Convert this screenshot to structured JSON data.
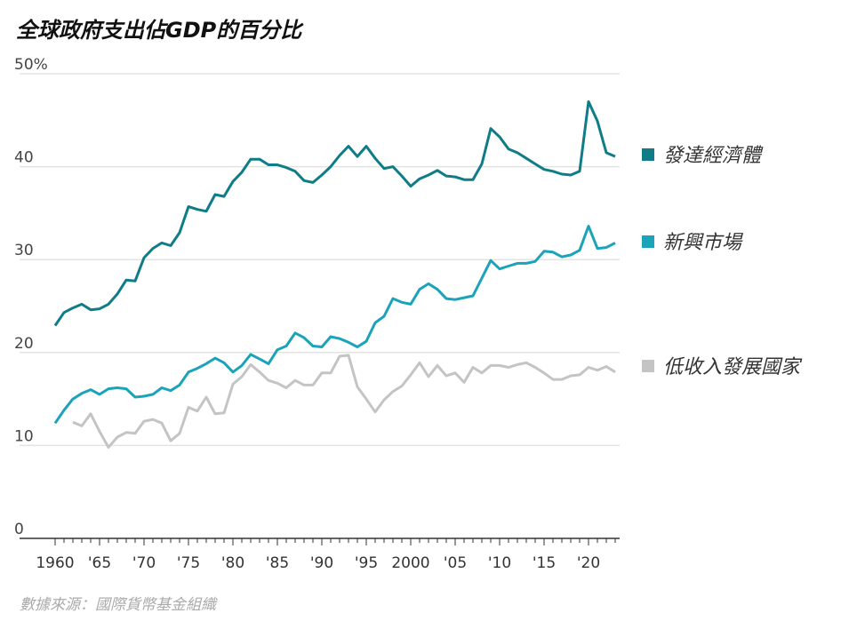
{
  "chart_data": {
    "type": "line",
    "title": "全球政府支出佔GDP的百分比",
    "source": "數據來源：國際貨幣基金組織",
    "ylim": [
      0,
      50
    ],
    "yticks": [
      0,
      10,
      20,
      30,
      40,
      50
    ],
    "ytick_labels": [
      "0",
      "10",
      "20",
      "30",
      "40",
      "50%"
    ],
    "xlim": [
      1960,
      2023
    ],
    "xticks": [
      1960,
      1965,
      1970,
      1975,
      1980,
      1985,
      1990,
      1995,
      2000,
      2005,
      2010,
      2015,
      2020
    ],
    "xtick_labels": [
      "1960",
      "'65",
      "'70",
      "'75",
      "'80",
      "'85",
      "'90",
      "'95",
      "2000",
      "'05",
      "'10",
      "'15",
      "'20"
    ],
    "grid": true,
    "legend": "right",
    "series": [
      {
        "name": "發達經濟體",
        "color": "#0f7c87",
        "start": 1960,
        "values": [
          22.9,
          24.3,
          24.8,
          25.2,
          24.6,
          24.7,
          25.2,
          26.3,
          27.8,
          27.7,
          30.2,
          31.2,
          31.8,
          31.5,
          32.9,
          35.7,
          35.4,
          35.2,
          37.0,
          36.8,
          38.4,
          39.4,
          40.8,
          40.8,
          40.2,
          40.2,
          39.9,
          39.5,
          38.5,
          38.3,
          39.1,
          40.0,
          41.2,
          42.2,
          41.1,
          42.2,
          40.9,
          39.8,
          40.0,
          39.0,
          37.9,
          38.7,
          39.1,
          39.6,
          39.0,
          38.9,
          38.6,
          38.6,
          40.3,
          44.1,
          43.2,
          41.9,
          41.5,
          40.9,
          40.3,
          39.7,
          39.5,
          39.2,
          39.1,
          39.5,
          47.0,
          44.9,
          41.5,
          41.1
        ]
      },
      {
        "name": "新興市場",
        "color": "#1ba3b9",
        "start": 1960,
        "values": [
          12.4,
          13.8,
          15.0,
          15.6,
          16.0,
          15.5,
          16.1,
          16.2,
          16.1,
          15.2,
          15.3,
          15.5,
          16.2,
          15.9,
          16.5,
          17.9,
          18.3,
          18.8,
          19.4,
          18.9,
          17.9,
          18.6,
          19.8,
          19.3,
          18.8,
          20.3,
          20.7,
          22.1,
          21.6,
          20.7,
          20.6,
          21.7,
          21.5,
          21.1,
          20.6,
          21.2,
          23.2,
          23.9,
          25.8,
          25.4,
          25.2,
          26.8,
          27.4,
          26.8,
          25.8,
          25.7,
          25.9,
          26.1,
          28.0,
          29.9,
          29.0,
          29.3,
          29.6,
          29.6,
          29.8,
          30.9,
          30.8,
          30.3,
          30.5,
          31.0,
          33.6,
          31.2,
          31.3,
          31.8
        ]
      },
      {
        "name": "低收入發展國家",
        "color": "#c4c4c4",
        "start": 1962,
        "values": [
          12.5,
          12.1,
          13.4,
          11.5,
          9.8,
          10.9,
          11.4,
          11.3,
          12.6,
          12.8,
          12.4,
          10.5,
          11.3,
          14.1,
          13.7,
          15.2,
          13.4,
          13.5,
          16.6,
          17.4,
          18.7,
          17.9,
          17.0,
          16.7,
          16.2,
          17.0,
          16.5,
          16.5,
          17.8,
          17.8,
          19.6,
          19.7,
          16.3,
          15.0,
          13.6,
          14.9,
          15.8,
          16.4,
          17.6,
          18.9,
          17.4,
          18.6,
          17.5,
          17.8,
          16.8,
          18.4,
          17.8,
          18.6,
          18.6,
          18.4,
          18.7,
          18.9,
          18.4,
          17.8,
          17.1,
          17.1,
          17.5,
          17.6,
          18.4,
          18.1,
          18.5,
          17.9
        ]
      }
    ]
  }
}
